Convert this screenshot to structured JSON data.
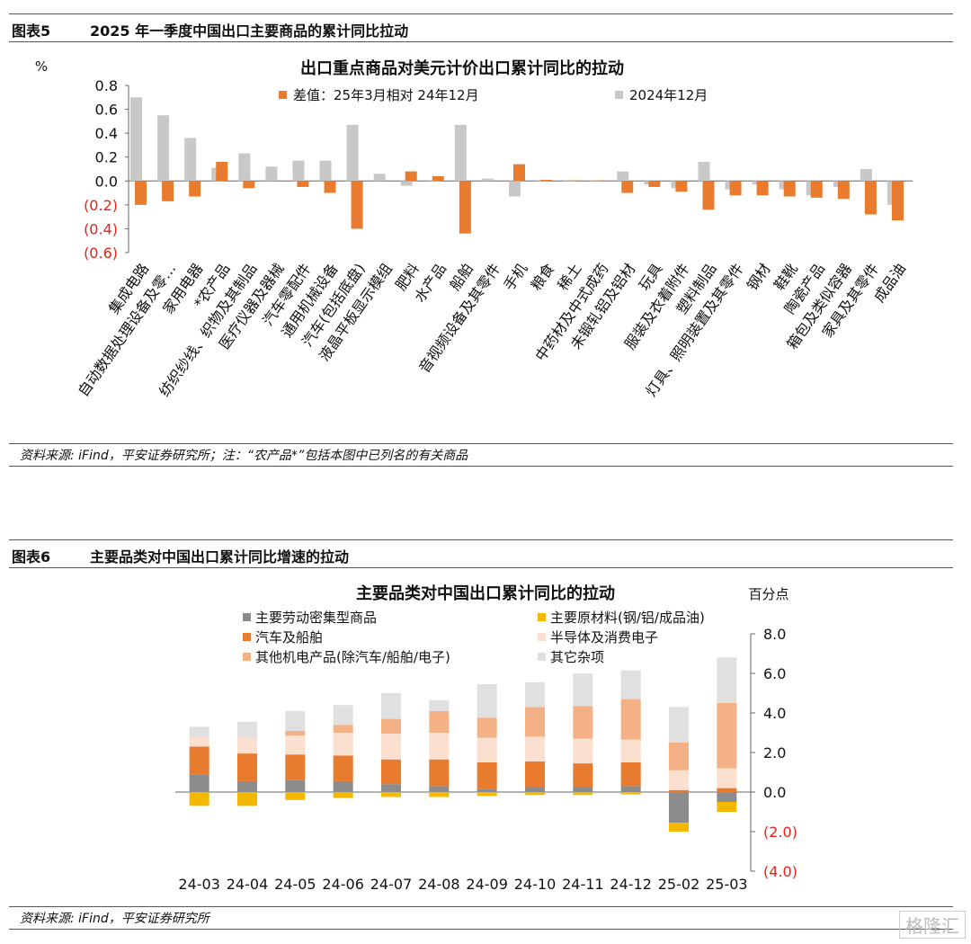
{
  "fig5": {
    "num": "图表5",
    "title": "2025 年一季度中国出口主要商品的累计同比拉动",
    "source": "资料来源: iFind，平安证券研究所；注：“农产品*”包括本图中已列名的有关商品"
  },
  "fig6": {
    "num": "图表6",
    "title": "主要品类对中国出口累计同比增速的拉动",
    "source": "资料来源: iFind，平安证券研究所"
  },
  "watermark": "格隆汇",
  "chart_data": [
    {
      "type": "bar",
      "title": "出口重点商品对美元计价出口累计同比的拉动",
      "ylabel": "%",
      "ylim": [
        -0.6,
        0.8
      ],
      "yticks": [
        0.8,
        0.6,
        0.4,
        0.2,
        0.0,
        -0.2,
        -0.4,
        -0.6
      ],
      "yticklabels": [
        "0.8",
        "0.6",
        "0.4",
        "0.2",
        "0.0",
        "(0.2)",
        "(0.4)",
        "(0.6)"
      ],
      "colors": {
        "diff": "#E87B2E",
        "base": "#C8C8C8",
        "negative_label": "#E8221B"
      },
      "categories": [
        "集成电路",
        "自动数据处理设备及零…",
        "家用电器",
        "*农产品",
        "纺织纱线、织物及其制品",
        "医疗仪器及器械",
        "汽车零配件",
        "通用机械设备",
        "汽车(包括底盘)",
        "液晶平板显示模组",
        "肥料",
        "水产品",
        "船舶",
        "音视频设备及其零件",
        "手机",
        "粮食",
        "稀土",
        "中药材及中式成药",
        "未锻轧铝及铝材",
        "玩具",
        "服装及衣着附件",
        "塑料制品",
        "灯具、照明装置及其零件",
        "钢材",
        "鞋靴",
        "陶瓷产品",
        "箱包及类似容器",
        "家具及其零件",
        "成品油"
      ],
      "series": [
        {
          "name": "差值：25年3月相对 24年12月",
          "values": [
            -0.2,
            -0.17,
            -0.13,
            0.16,
            -0.06,
            0.0,
            -0.05,
            -0.1,
            -0.4,
            0.0,
            0.08,
            0.04,
            -0.44,
            0.0,
            0.14,
            0.01,
            0.005,
            0.005,
            -0.1,
            -0.05,
            -0.09,
            -0.24,
            -0.12,
            -0.12,
            -0.13,
            -0.14,
            -0.15,
            -0.28,
            -0.33
          ]
        },
        {
          "name": "2024年12月",
          "values": [
            0.7,
            0.55,
            0.36,
            0.11,
            0.23,
            0.12,
            0.17,
            0.17,
            0.47,
            0.06,
            -0.04,
            0.0,
            0.47,
            0.02,
            -0.13,
            0.0,
            -0.005,
            -0.005,
            0.08,
            -0.03,
            -0.06,
            0.16,
            -0.07,
            -0.03,
            -0.07,
            -0.12,
            -0.05,
            0.1,
            -0.2
          ]
        }
      ]
    },
    {
      "type": "bar",
      "stacked": true,
      "title": "主要品类对中国出口累计同比的拉动",
      "ylabel": "百分点",
      "ylim": [
        -4.0,
        8.0
      ],
      "yticks": [
        8.0,
        6.0,
        4.0,
        2.0,
        0.0,
        -2.0,
        -4.0
      ],
      "yticklabels": [
        "8.0",
        "6.0",
        "4.0",
        "2.0",
        "0.0",
        "(2.0)",
        "(4.0)"
      ],
      "categories": [
        "24-03",
        "24-04",
        "24-05",
        "24-06",
        "24-07",
        "24-08",
        "24-09",
        "24-10",
        "24-11",
        "24-12",
        "25-02",
        "25-03"
      ],
      "series": [
        {
          "name": "主要劳动密集型商品",
          "color": "#8C8C8C",
          "values": [
            0.9,
            0.55,
            0.6,
            0.55,
            0.4,
            0.3,
            0.15,
            0.25,
            0.25,
            0.3,
            -1.55,
            -0.5
          ]
        },
        {
          "name": "主要原材料(钢/铝/成品油)",
          "color": "#F5B800",
          "values": [
            -0.7,
            -0.7,
            -0.4,
            -0.3,
            -0.25,
            -0.25,
            -0.2,
            -0.15,
            -0.15,
            -0.12,
            -0.45,
            -0.5
          ]
        },
        {
          "name": "汽车及船舶",
          "color": "#E87B2E",
          "values": [
            1.4,
            1.4,
            1.3,
            1.3,
            1.25,
            1.35,
            1.35,
            1.3,
            1.2,
            1.2,
            0.1,
            0.2
          ]
        },
        {
          "name": "半导体及消费电子",
          "color": "#FBE0D0",
          "values": [
            0.5,
            0.8,
            0.95,
            1.15,
            1.3,
            1.35,
            1.25,
            1.25,
            1.25,
            1.15,
            1.0,
            1.0
          ]
        },
        {
          "name": "其他机电产品(除汽车/船舶/电子)",
          "color": "#F4B185",
          "values": [
            0.0,
            0.0,
            0.25,
            0.4,
            0.75,
            1.1,
            1.0,
            1.5,
            1.65,
            2.05,
            1.4,
            3.3
          ]
        },
        {
          "name": "其它杂项",
          "color": "#E0E0E0",
          "values": [
            0.5,
            0.8,
            1.0,
            1.0,
            1.3,
            0.55,
            1.7,
            1.25,
            1.65,
            1.45,
            1.8,
            2.3
          ]
        }
      ]
    }
  ]
}
